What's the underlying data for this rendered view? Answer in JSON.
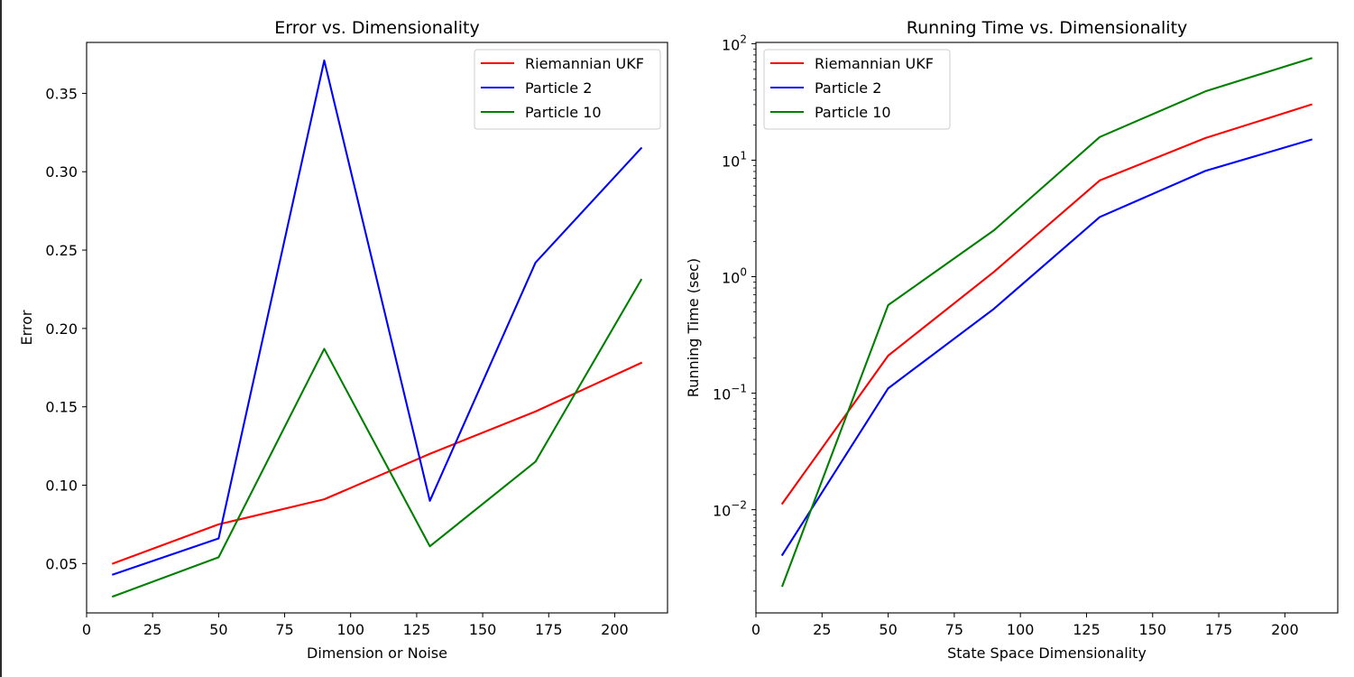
{
  "chart_data": [
    {
      "id": "error",
      "type": "line",
      "title": "Error vs. Dimensionality",
      "xlabel": "Dimension or Noise",
      "ylabel": "Error",
      "x": [
        10,
        50,
        90,
        130,
        170,
        210
      ],
      "xlim": [
        0,
        220
      ],
      "ylim": [
        0.0185,
        0.3825
      ],
      "yscale": "linear",
      "xticks": [
        0,
        25,
        50,
        75,
        100,
        125,
        150,
        175,
        200
      ],
      "xtick_labels": [
        "0",
        "25",
        "50",
        "75",
        "100",
        "125",
        "150",
        "175",
        "200"
      ],
      "yticks": [
        0.05,
        0.1,
        0.15,
        0.2,
        0.25,
        0.3,
        0.35
      ],
      "ytick_labels": [
        "0.05",
        "0.10",
        "0.15",
        "0.20",
        "0.25",
        "0.30",
        "0.35"
      ],
      "grid": false,
      "legend_position": "upper right",
      "series": [
        {
          "name": "Riemannian UKF",
          "color": "#ff0000",
          "values": [
            0.05,
            0.075,
            0.091,
            0.12,
            0.147,
            0.178
          ]
        },
        {
          "name": "Particle 2",
          "color": "#0000ff",
          "values": [
            0.043,
            0.066,
            0.371,
            0.09,
            0.242,
            0.315
          ]
        },
        {
          "name": "Particle 10",
          "color": "#008000",
          "values": [
            0.029,
            0.054,
            0.187,
            0.061,
            0.115,
            0.231
          ]
        }
      ]
    },
    {
      "id": "time",
      "type": "line",
      "title": "Running Time vs. Dimensionality",
      "xlabel": "State Space Dimensionality",
      "ylabel": "Running Time (sec)",
      "x": [
        10,
        50,
        90,
        130,
        170,
        210
      ],
      "xlim": [
        0,
        220
      ],
      "ylim": [
        0.0013,
        102.5
      ],
      "yscale": "log",
      "xticks": [
        0,
        25,
        50,
        75,
        100,
        125,
        150,
        175,
        200
      ],
      "xtick_labels": [
        "0",
        "25",
        "50",
        "75",
        "100",
        "125",
        "150",
        "175",
        "200"
      ],
      "yticks": [
        0.01,
        0.1,
        1,
        10,
        100
      ],
      "ytick_labels": [
        {
          "base": "10",
          "exp": "−2"
        },
        {
          "base": "10",
          "exp": "−1"
        },
        {
          "base": "10",
          "exp": "0"
        },
        {
          "base": "10",
          "exp": "1"
        },
        {
          "base": "10",
          "exp": "2"
        }
      ],
      "grid": false,
      "legend_position": "upper left",
      "series": [
        {
          "name": "Riemannian UKF",
          "color": "#ff0000",
          "values": [
            0.0113,
            0.21,
            1.1,
            6.7,
            15.5,
            30
          ]
        },
        {
          "name": "Particle 2",
          "color": "#0000ff",
          "values": [
            0.0041,
            0.11,
            0.53,
            3.25,
            8.1,
            15
          ]
        },
        {
          "name": "Particle 10",
          "color": "#008000",
          "values": [
            0.00222,
            0.57,
            2.5,
            15.8,
            39,
            75
          ]
        }
      ]
    }
  ]
}
